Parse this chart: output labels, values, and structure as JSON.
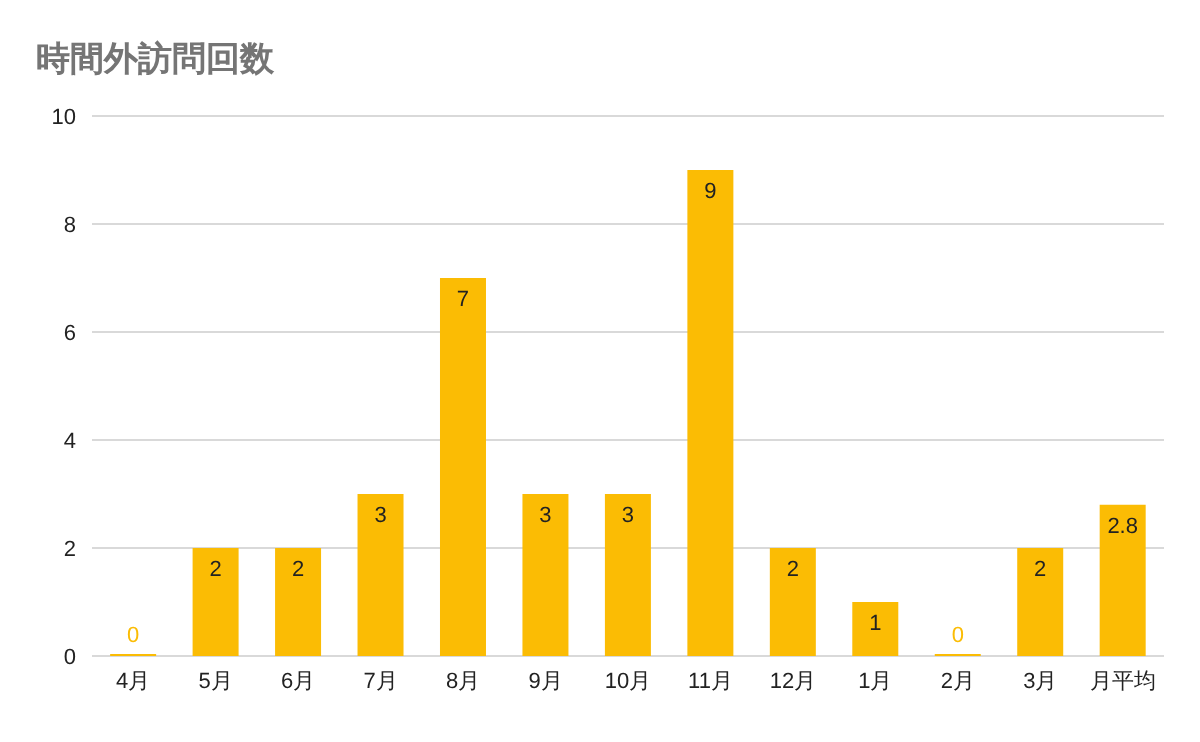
{
  "chart_data": {
    "type": "bar",
    "title": "時間外訪問回数",
    "categories": [
      "4月",
      "5月",
      "6月",
      "7月",
      "8月",
      "9月",
      "10月",
      "11月",
      "12月",
      "1月",
      "2月",
      "3月",
      "月平均"
    ],
    "values": [
      0,
      2,
      2,
      3,
      7,
      3,
      3,
      9,
      2,
      1,
      0,
      2,
      2.8
    ],
    "color": "#fbbc04",
    "ylim": [
      0,
      10
    ],
    "yticks": [
      0,
      2,
      4,
      6,
      8,
      10
    ],
    "grid": "y",
    "data_labels": true
  }
}
